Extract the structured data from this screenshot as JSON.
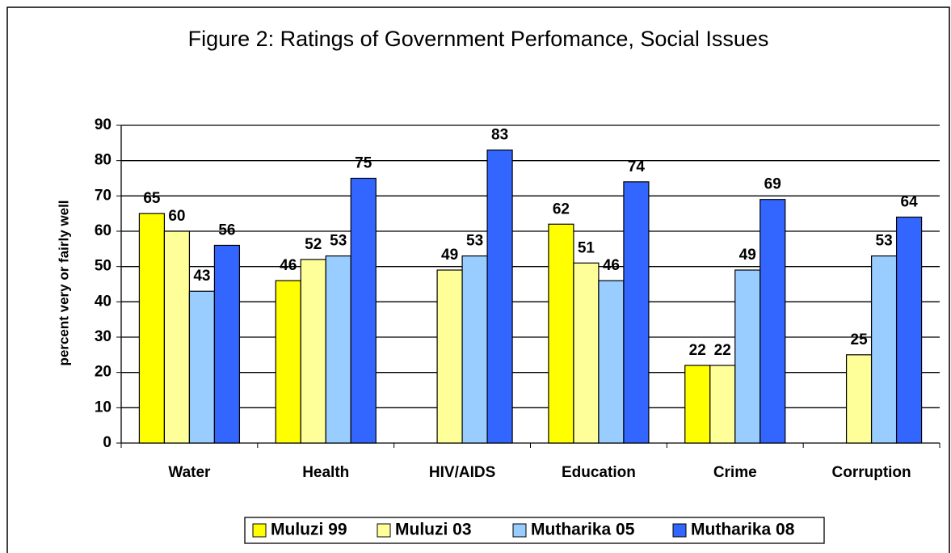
{
  "chart_data": {
    "type": "bar",
    "title": "Figure 2: Ratings of Government Perfomance, Social Issues",
    "ylabel": "percent very or fairly well",
    "categories": [
      "Water",
      "Health",
      "HIV/AIDS",
      "Education",
      "Crime",
      "Corruption"
    ],
    "series": [
      {
        "name": "Muluzi 99",
        "color": "#ffff00",
        "values": [
          65,
          46,
          null,
          62,
          22,
          null
        ]
      },
      {
        "name": "Muluzi 03",
        "color": "#ffff99",
        "values": [
          60,
          52,
          49,
          51,
          22,
          25
        ]
      },
      {
        "name": "Mutharika 05",
        "color": "#99ccff",
        "values": [
          43,
          53,
          53,
          46,
          49,
          53
        ]
      },
      {
        "name": "Mutharika 08",
        "color": "#3366ff",
        "values": [
          56,
          75,
          83,
          74,
          69,
          64
        ]
      }
    ],
    "ylim": [
      0,
      90
    ],
    "yticks": [
      0,
      10,
      20,
      30,
      40,
      50,
      60,
      70,
      80,
      90
    ],
    "grid": true,
    "legend": "bottom"
  }
}
